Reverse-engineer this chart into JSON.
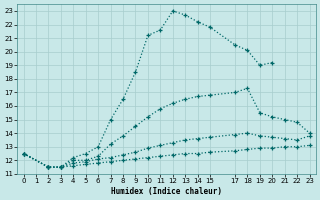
{
  "xlabel": "Humidex (Indice chaleur)",
  "background_color": "#c8e8e8",
  "grid_color": "#a8cece",
  "line_color": "#006868",
  "xlim": [
    -0.5,
    23.5
  ],
  "ylim": [
    11,
    23.5
  ],
  "yticks": [
    11,
    12,
    13,
    14,
    15,
    16,
    17,
    18,
    19,
    20,
    21,
    22,
    23
  ],
  "xticks": [
    0,
    1,
    2,
    3,
    4,
    5,
    6,
    7,
    8,
    9,
    10,
    11,
    12,
    13,
    14,
    15,
    17,
    18,
    19,
    20,
    21,
    22,
    23
  ],
  "curves": [
    {
      "x": [
        0,
        2,
        3,
        4,
        5,
        6,
        7,
        8,
        9,
        10,
        11,
        12,
        13,
        14,
        15,
        17,
        18,
        19,
        20
      ],
      "y": [
        12.5,
        11.5,
        11.5,
        12.2,
        12.5,
        13.0,
        15.0,
        16.5,
        18.5,
        21.2,
        21.6,
        23.0,
        22.7,
        22.2,
        21.8,
        20.5,
        20.1,
        19.0,
        19.2
      ]
    },
    {
      "x": [
        0,
        2,
        3,
        4,
        5,
        6,
        7,
        8,
        9,
        10,
        11,
        12,
        13,
        14,
        15,
        17,
        18,
        19,
        20,
        21,
        22,
        23
      ],
      "y": [
        12.5,
        11.5,
        11.5,
        12.0,
        12.0,
        12.3,
        13.2,
        13.8,
        14.5,
        15.2,
        15.8,
        16.2,
        16.5,
        16.7,
        16.8,
        17.0,
        17.3,
        15.5,
        15.2,
        15.0,
        14.8,
        14.0
      ]
    },
    {
      "x": [
        0,
        2,
        3,
        4,
        5,
        6,
        7,
        8,
        9,
        10,
        11,
        12,
        13,
        14,
        15,
        17,
        18,
        19,
        20,
        21,
        22,
        23
      ],
      "y": [
        12.5,
        11.5,
        11.5,
        11.8,
        11.9,
        12.1,
        12.2,
        12.4,
        12.6,
        12.9,
        13.1,
        13.3,
        13.5,
        13.6,
        13.7,
        13.9,
        14.0,
        13.8,
        13.7,
        13.6,
        13.5,
        13.8
      ]
    },
    {
      "x": [
        0,
        2,
        3,
        4,
        5,
        6,
        7,
        8,
        9,
        10,
        11,
        12,
        13,
        14,
        15,
        17,
        18,
        19,
        20,
        21,
        22,
        23
      ],
      "y": [
        12.5,
        11.5,
        11.5,
        11.6,
        11.7,
        11.8,
        11.9,
        12.0,
        12.1,
        12.2,
        12.3,
        12.4,
        12.5,
        12.5,
        12.6,
        12.7,
        12.8,
        12.9,
        12.9,
        13.0,
        13.0,
        13.1
      ]
    }
  ]
}
